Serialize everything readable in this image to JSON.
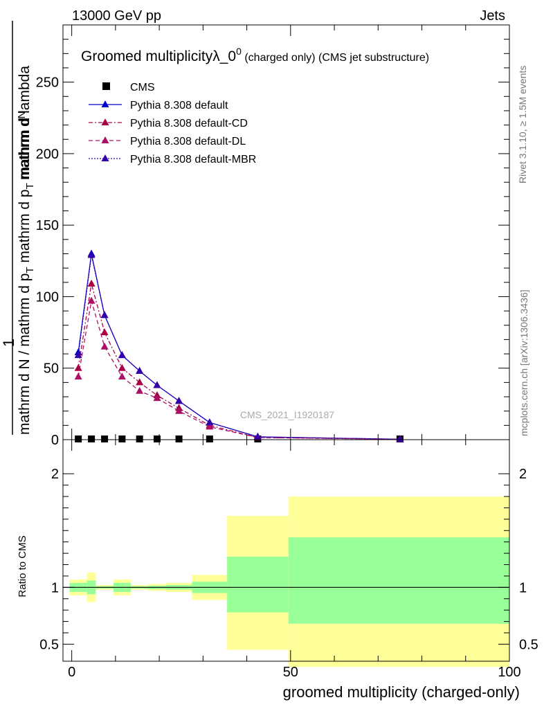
{
  "header": {
    "left": "13000 GeV pp",
    "right": "Jets"
  },
  "side_text": {
    "rivet": "Rivet 3.1.10, ≥ 1.5M events",
    "mcplots": "mcplots.cern.ch [arXiv:1306.3436]"
  },
  "watermark": "CMS_2021_I1920187",
  "y_axis_label": {
    "numerator_one": "1",
    "numerator_dn": "mathrm d",
    "numerator_n": "N",
    "denominator": "mathrm d N / mathrm d p",
    "subscript_t": "T",
    "denominator_tail": " mathrm d p",
    "subscript_t2": "T",
    "tail": " mathrm d lambda"
  },
  "colors": {
    "cms": "#000000",
    "default": "#0000cc",
    "cd": "#aa0044",
    "dl": "#aa1166",
    "mbr": "#3300aa",
    "band_outer": "#ffff99",
    "band_inner": "#99ff99"
  },
  "chart_data": [
    {
      "type": "line",
      "title": "Groomed multiplicityλ_0",
      "title_superscript": "0",
      "title_suffix": " (charged only) (CMS jet substructure)",
      "xlabel": "groomed multiplicity (charged-only)",
      "xlim": [
        -2,
        100
      ],
      "ylim": [
        0,
        290
      ],
      "yticks": [
        0,
        50,
        100,
        150,
        200,
        250
      ],
      "xticks": [
        0,
        50,
        100
      ],
      "legend_position": "top-left",
      "series": [
        {
          "name": "CMS",
          "style": "markers",
          "color": "#000000",
          "x": [
            1.5,
            4.5,
            7.5,
            11.5,
            15.5,
            19.5,
            24.5,
            31.5,
            42.5,
            75
          ],
          "y": [
            0.5,
            0.5,
            0.5,
            0.5,
            0.5,
            0.5,
            0.5,
            0.5,
            0.5,
            0.5
          ]
        },
        {
          "name": "Pythia 8.308 default",
          "style": "solid",
          "color": "#0000cc",
          "x": [
            1.5,
            4.5,
            7.5,
            11.5,
            15.5,
            19.5,
            24.5,
            31.5,
            42.5,
            75
          ],
          "y": [
            61,
            130,
            87,
            59,
            48,
            38,
            27,
            12,
            2,
            0.3
          ]
        },
        {
          "name": "Pythia 8.308 default-CD",
          "style": "dashdot",
          "color": "#aa0044",
          "x": [
            1.5,
            4.5,
            7.5,
            11.5,
            15.5,
            19.5,
            24.5,
            31.5,
            42.5,
            75
          ],
          "y": [
            50,
            109,
            75,
            50,
            40,
            31,
            22,
            10,
            1.5,
            0.3
          ]
        },
        {
          "name": "Pythia 8.308 default-DL",
          "style": "dashed",
          "color": "#aa1166",
          "x": [
            1.5,
            4.5,
            7.5,
            11.5,
            15.5,
            19.5,
            24.5,
            31.5,
            42.5,
            75
          ],
          "y": [
            44,
            97,
            65,
            44,
            34,
            29,
            20,
            9,
            1.5,
            0.3
          ]
        },
        {
          "name": "Pythia 8.308 default-MBR",
          "style": "dotted",
          "color": "#3300aa",
          "x": [
            1.5,
            4.5,
            7.5,
            11.5,
            15.5,
            19.5,
            24.5,
            31.5,
            42.5,
            75
          ],
          "y": [
            59,
            129,
            87,
            59,
            48,
            38,
            27,
            12,
            2,
            0.3
          ]
        }
      ]
    },
    {
      "type": "area",
      "ylabel": "Ratio to CMS",
      "xlim": [
        -2,
        100
      ],
      "ylim": [
        0.35,
        2.3
      ],
      "yticks": [
        0.5,
        1,
        2
      ],
      "ytick_labels": [
        "0.5",
        "1",
        "2"
      ],
      "xticks": [
        0,
        50,
        100
      ],
      "reference_line": 1,
      "bins": [
        {
          "x0": -0.5,
          "x1": 3.5,
          "inner": [
            0.96,
            1.04
          ],
          "outer": [
            0.93,
            1.07
          ]
        },
        {
          "x0": 3.5,
          "x1": 5.5,
          "inner": [
            0.94,
            1.06
          ],
          "outer": [
            0.87,
            1.13
          ]
        },
        {
          "x0": 5.5,
          "x1": 9.5,
          "inner": [
            0.99,
            1.01
          ],
          "outer": [
            0.98,
            1.02
          ]
        },
        {
          "x0": 9.5,
          "x1": 13.5,
          "inner": [
            0.96,
            1.04
          ],
          "outer": [
            0.93,
            1.07
          ]
        },
        {
          "x0": 13.5,
          "x1": 17.5,
          "inner": [
            0.99,
            1.01
          ],
          "outer": [
            0.98,
            1.02
          ]
        },
        {
          "x0": 17.5,
          "x1": 21.5,
          "inner": [
            0.985,
            1.015
          ],
          "outer": [
            0.97,
            1.03
          ]
        },
        {
          "x0": 21.5,
          "x1": 27.5,
          "inner": [
            0.98,
            1.02
          ],
          "outer": [
            0.96,
            1.04
          ]
        },
        {
          "x0": 27.5,
          "x1": 35.5,
          "inner": [
            0.95,
            1.05
          ],
          "outer": [
            0.89,
            1.11
          ]
        },
        {
          "x0": 35.5,
          "x1": 49.5,
          "inner": [
            0.78,
            1.27
          ],
          "outer": [
            0.45,
            1.63
          ]
        },
        {
          "x0": 49.5,
          "x1": 100,
          "inner": [
            0.68,
            1.44
          ],
          "outer": [
            0.3,
            1.8
          ]
        }
      ]
    }
  ]
}
